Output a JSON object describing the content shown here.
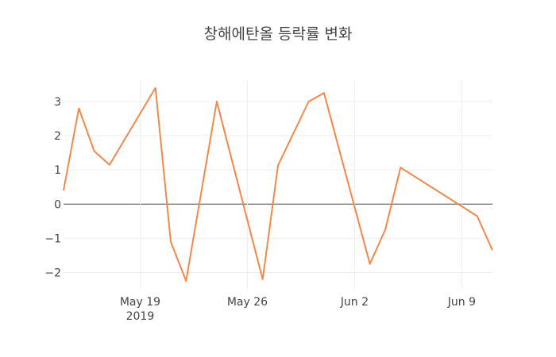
{
  "chart_data": {
    "type": "line",
    "title": "창해에탄올 등락률 변화",
    "xlabel": "",
    "ylabel": "",
    "x_start": "2019-05-12",
    "ylim": [
      -2.5,
      3.65
    ],
    "yticks": [
      -2,
      -1,
      0,
      1,
      2,
      3
    ],
    "ytick_labels": [
      "−2",
      "−1",
      "0",
      "1",
      "2",
      "3"
    ],
    "xticks": [
      {
        "day": 7,
        "label": "May 19",
        "sublabel": "2019"
      },
      {
        "day": 14,
        "label": "May 26",
        "sublabel": ""
      },
      {
        "day": 21,
        "label": "Jun 2",
        "sublabel": ""
      },
      {
        "day": 28,
        "label": "Jun 9",
        "sublabel": ""
      }
    ],
    "x_range_days": [
      2,
      30
    ],
    "grid": true,
    "series": [
      {
        "name": "등락률",
        "color": "#f0884a",
        "points": [
          {
            "date": "2019-05-14",
            "day": 2,
            "value": 0.4
          },
          {
            "date": "2019-05-15",
            "day": 3,
            "value": 2.8
          },
          {
            "date": "2019-05-16",
            "day": 4,
            "value": 1.55
          },
          {
            "date": "2019-05-17",
            "day": 5,
            "value": 1.15
          },
          {
            "date": "2019-05-20",
            "day": 8,
            "value": 3.4
          },
          {
            "date": "2019-05-21",
            "day": 9,
            "value": -1.1
          },
          {
            "date": "2019-05-22",
            "day": 10,
            "value": -2.25
          },
          {
            "date": "2019-05-24",
            "day": 12,
            "value": 3.0
          },
          {
            "date": "2019-05-27",
            "day": 15,
            "value": -2.2
          },
          {
            "date": "2019-05-28",
            "day": 16,
            "value": 1.13
          },
          {
            "date": "2019-05-30",
            "day": 18,
            "value": 3.0
          },
          {
            "date": "2019-05-31",
            "day": 19,
            "value": 3.25
          },
          {
            "date": "2019-06-03",
            "day": 22,
            "value": -1.75
          },
          {
            "date": "2019-06-04",
            "day": 23,
            "value": -0.75
          },
          {
            "date": "2019-06-05",
            "day": 24,
            "value": 1.07
          },
          {
            "date": "2019-06-10",
            "day": 29,
            "value": -0.35
          },
          {
            "date": "2019-06-11",
            "day": 30,
            "value": -1.35
          }
        ]
      }
    ]
  }
}
